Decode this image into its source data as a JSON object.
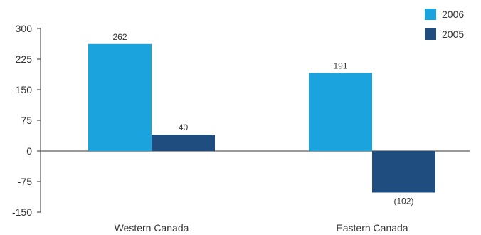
{
  "chart_data": {
    "type": "bar",
    "categories": [
      "Western Canada",
      "Eastern Canada"
    ],
    "series": [
      {
        "name": "2006",
        "color": "#1aa3dd",
        "values": [
          262,
          191
        ],
        "labels": [
          "262",
          "191"
        ]
      },
      {
        "name": "2005",
        "color": "#1f4d80",
        "values": [
          40,
          -102
        ],
        "labels": [
          "40",
          "(102)"
        ]
      }
    ],
    "ylim": [
      -150,
      300
    ],
    "yticks": [
      300,
      225,
      150,
      75,
      0,
      -75,
      -150
    ],
    "ytick_labels": [
      "300",
      "225",
      "150",
      "75",
      "0",
      "-75",
      "-150"
    ],
    "grid": false,
    "legend_position": "top-right"
  }
}
